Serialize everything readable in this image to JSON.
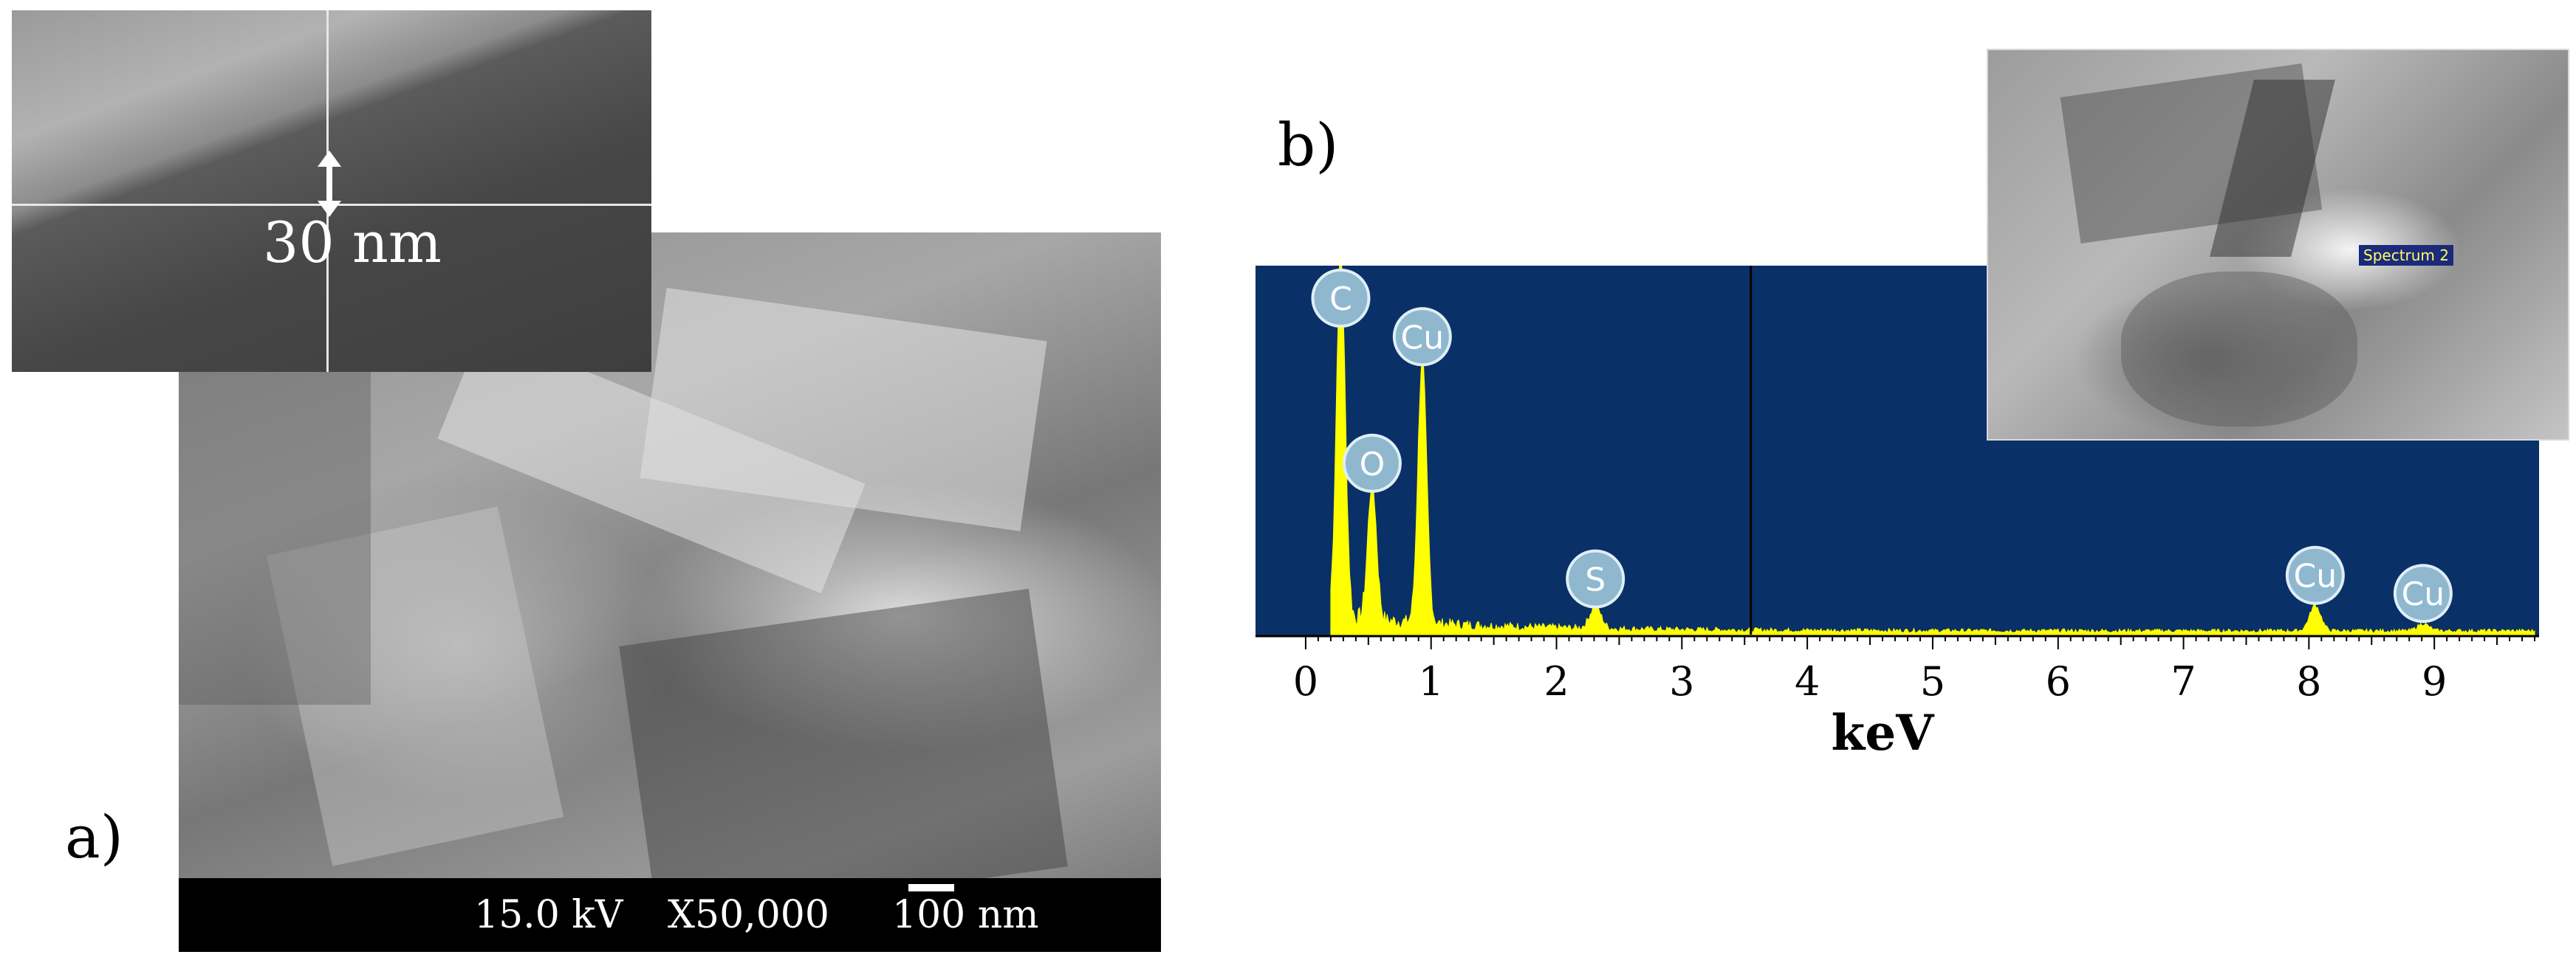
{
  "panel_a": {
    "letter": "a)",
    "inset_label": "30 nm",
    "info_bar": {
      "voltage": "15.0 kV",
      "magnification": "X50,000",
      "scale": "100 nm"
    }
  },
  "panel_b": {
    "letter": "b)",
    "inset_tag": "Spectrum 2"
  },
  "chart_data": {
    "type": "line",
    "title": "",
    "xlabel": "keV",
    "ylabel": "",
    "xlim": [
      -0.4,
      9.8
    ],
    "xticks": [
      "0",
      "1",
      "2",
      "3",
      "4",
      "5",
      "6",
      "7",
      "8",
      "9"
    ],
    "background_color": "#0a3068",
    "line_color": "#ffff00",
    "grid": false,
    "cursor_x": 3.55,
    "peaks": [
      {
        "element": "C",
        "energy": 0.28,
        "relative_intensity": 1.0
      },
      {
        "element": "O",
        "energy": 0.53,
        "relative_intensity": 0.38
      },
      {
        "element": "Cu",
        "energy": 0.93,
        "relative_intensity": 0.73
      },
      {
        "element": "S",
        "energy": 2.31,
        "relative_intensity": 0.06
      },
      {
        "element": "Cu",
        "energy": 8.05,
        "relative_intensity": 0.07
      },
      {
        "element": "Cu",
        "energy": 8.91,
        "relative_intensity": 0.02
      }
    ]
  }
}
